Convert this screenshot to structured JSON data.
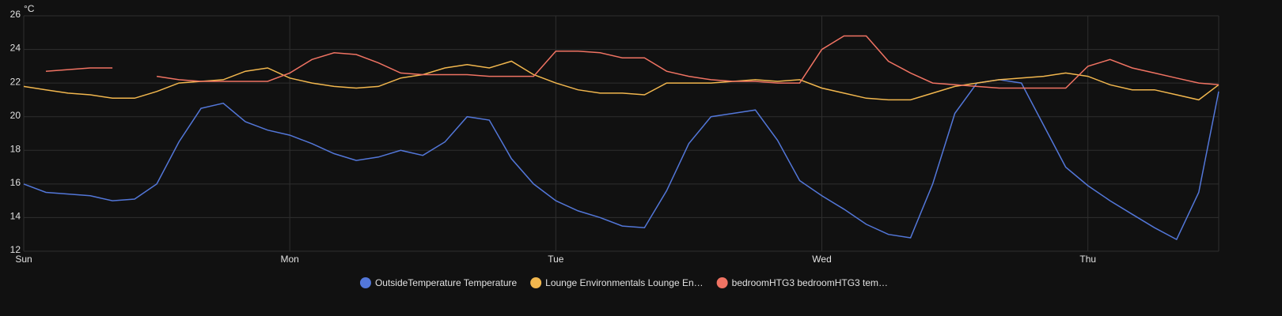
{
  "chart_data": {
    "type": "line",
    "y_label": "°C",
    "x": [
      0,
      2,
      4,
      6,
      8,
      10,
      12,
      14,
      16,
      18,
      20,
      22,
      24,
      26,
      28,
      30,
      32,
      34,
      36,
      38,
      40,
      42,
      44,
      46,
      48,
      50,
      52,
      54,
      56,
      58,
      60,
      62,
      64,
      66,
      68,
      70,
      72,
      74,
      76,
      78,
      80,
      82,
      84,
      86,
      88,
      90,
      92,
      94,
      96,
      98,
      100,
      102,
      104,
      106,
      107.8
    ],
    "xlim": [
      0,
      107.8
    ],
    "xticks": [
      {
        "value": 0,
        "label": "Sun"
      },
      {
        "value": 24,
        "label": "Mon"
      },
      {
        "value": 48,
        "label": "Tue"
      },
      {
        "value": 72,
        "label": "Wed"
      },
      {
        "value": 96,
        "label": "Thu"
      }
    ],
    "ylim": [
      12,
      26
    ],
    "yticks": [
      12,
      14,
      16,
      18,
      20,
      22,
      24,
      26
    ],
    "grid": true,
    "series": [
      {
        "name": "OutsideTemperature Temperature",
        "color": "#5377d9",
        "values": [
          16.0,
          15.5,
          15.4,
          15.3,
          15.0,
          15.1,
          16.0,
          18.5,
          20.5,
          20.8,
          19.7,
          19.2,
          18.9,
          18.4,
          17.8,
          17.4,
          17.6,
          18.0,
          17.7,
          18.5,
          20.0,
          19.8,
          17.5,
          16.0,
          15.0,
          14.4,
          14.0,
          13.5,
          13.4,
          15.6,
          18.4,
          20.0,
          20.2,
          20.4,
          18.6,
          16.2,
          15.3,
          14.5,
          13.6,
          13.0,
          12.8,
          16.0,
          20.2,
          22.0,
          22.2,
          22.0,
          19.5,
          17.0,
          15.9,
          15.0,
          14.2,
          13.4,
          12.7,
          15.5,
          21.5
        ]
      },
      {
        "name": "Lounge Environmentals Lounge En…",
        "color": "#f2b74e",
        "values": [
          21.8,
          21.6,
          21.4,
          21.3,
          21.1,
          21.1,
          21.5,
          22.0,
          22.1,
          22.2,
          22.7,
          22.9,
          22.3,
          22.0,
          21.8,
          21.7,
          21.8,
          22.3,
          22.5,
          22.9,
          23.1,
          22.9,
          23.3,
          22.5,
          22.0,
          21.6,
          21.4,
          21.4,
          21.3,
          22.0,
          22.0,
          22.0,
          22.1,
          22.2,
          22.1,
          22.2,
          21.7,
          21.4,
          21.1,
          21.0,
          21.0,
          21.4,
          21.8,
          22.0,
          22.2,
          22.3,
          22.4,
          22.6,
          22.4,
          21.9,
          21.6,
          21.6,
          21.3,
          21.0,
          21.9
        ]
      },
      {
        "name": "bedroomHTG3 bedroomHTG3 tem…",
        "color": "#f07363",
        "values": [
          null,
          22.7,
          22.8,
          22.9,
          22.9,
          null,
          22.4,
          22.2,
          22.1,
          22.1,
          22.1,
          22.1,
          22.6,
          23.4,
          23.8,
          23.7,
          23.2,
          22.6,
          22.5,
          22.5,
          22.5,
          22.4,
          22.4,
          22.4,
          23.9,
          23.9,
          23.8,
          23.5,
          23.5,
          22.7,
          22.4,
          22.2,
          22.1,
          22.1,
          22.0,
          22.0,
          24.0,
          24.8,
          24.8,
          23.3,
          22.6,
          22.0,
          21.9,
          21.8,
          21.7,
          21.7,
          21.7,
          21.7,
          23.0,
          23.4,
          22.9,
          22.6,
          22.3,
          22.0,
          21.9
        ]
      }
    ]
  }
}
